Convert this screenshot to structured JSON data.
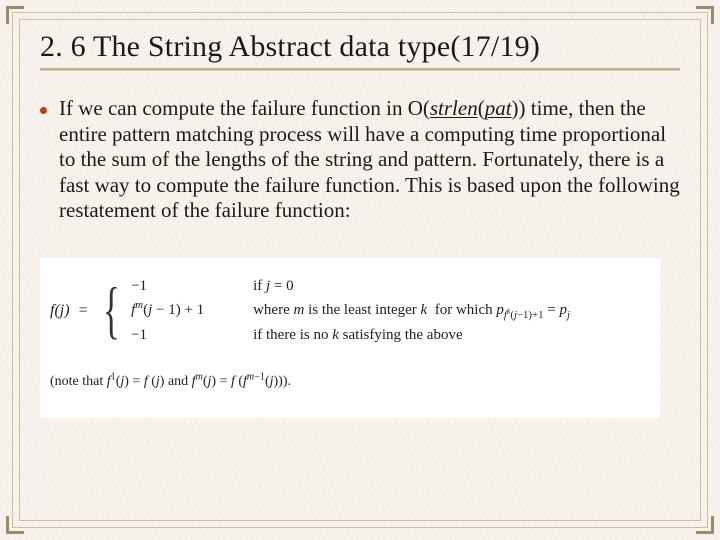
{
  "slide": {
    "title": "2. 6 The String Abstract data type(17/19)",
    "accent_color": "#b83e1a",
    "border_color": "#cbbf9f",
    "body_font_size_pt": 16,
    "title_font_size_pt": 23,
    "background_color": "#f8f4ed"
  },
  "bullet": {
    "prefix": "If we can compute the failure function in O(",
    "emph": "strlen",
    "paren_arg": "pat",
    "after_emph": ")) time, then the entire pattern matching process will have a computing time proportional to the sum of the lengths of the string and  pattern. Fortunately, there is a fast way to compute the failure function. This is based  upon the following restatement of the failure function:"
  },
  "formula": {
    "lhs": "f(j)  =",
    "cases": [
      {
        "left": "−1",
        "cond": "if j = 0"
      },
      {
        "left": "f^m(j − 1) + 1",
        "cond_pre": "where ",
        "cond_m_ital": "m",
        "cond_mid": " is the least integer ",
        "cond_k_ital": "k",
        "cond_tail": " for which ",
        "tail_math": "p_{f^k(j−1)+1} = p_j"
      },
      {
        "left": "−1",
        "cond": "if there is no k satisfying the above"
      }
    ],
    "note": "(note that f^1(j) = f (j) and f^m(j) = f (f^{m−1}(j)))."
  }
}
